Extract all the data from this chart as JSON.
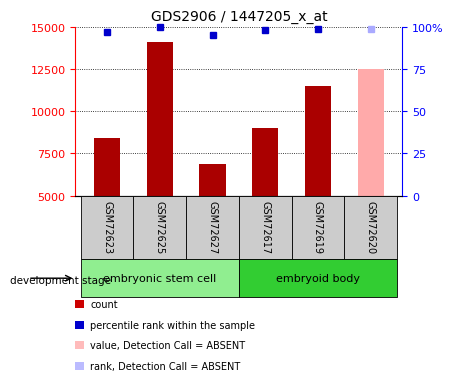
{
  "title": "GDS2906 / 1447205_x_at",
  "samples": [
    "GSM72623",
    "GSM72625",
    "GSM72627",
    "GSM72617",
    "GSM72619",
    "GSM72620"
  ],
  "bar_values": [
    8400,
    14100,
    6900,
    9000,
    11500,
    12500
  ],
  "bar_colors": [
    "#aa0000",
    "#aa0000",
    "#aa0000",
    "#aa0000",
    "#aa0000",
    "#ffaaaa"
  ],
  "rank_values": [
    97,
    100,
    95,
    98,
    99,
    99
  ],
  "rank_colors": [
    "#0000cc",
    "#0000cc",
    "#0000cc",
    "#0000cc",
    "#0000cc",
    "#aaaaff"
  ],
  "ylim_left": [
    5000,
    15000
  ],
  "ylim_right": [
    0,
    100
  ],
  "yticks_left": [
    5000,
    7500,
    10000,
    12500,
    15000
  ],
  "yticks_right": [
    0,
    25,
    50,
    75,
    100
  ],
  "groups": [
    {
      "label": "embryonic stem cell",
      "start": 0,
      "end": 3,
      "color": "#90ee90"
    },
    {
      "label": "embryoid body",
      "start": 3,
      "end": 6,
      "color": "#32cd32"
    }
  ],
  "development_stage_label": "development stage",
  "legend_items": [
    {
      "color": "#cc0000",
      "label": "count"
    },
    {
      "color": "#0000cc",
      "label": "percentile rank within the sample"
    },
    {
      "color": "#ffbbbb",
      "label": "value, Detection Call = ABSENT"
    },
    {
      "color": "#bbbbff",
      "label": "rank, Detection Call = ABSENT"
    }
  ],
  "bg_color": "#ffffff",
  "sample_bg_color": "#cccccc",
  "bar_width": 0.5,
  "rank_marker_size": 5
}
